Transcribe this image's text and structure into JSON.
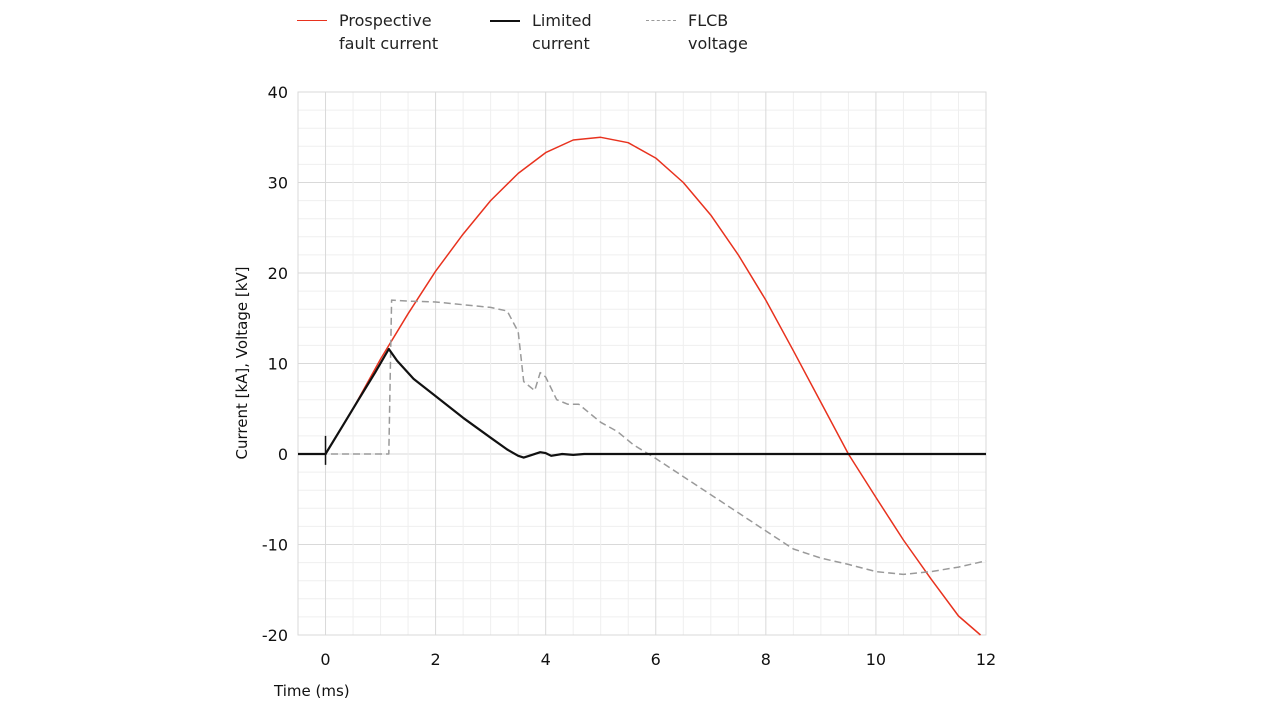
{
  "chart_data": {
    "type": "line",
    "title": "",
    "xlabel": "Time (ms)",
    "ylabel": "Current [kA], Voltage [kV]",
    "xlim": [
      -0.5,
      12
    ],
    "ylim": [
      -20,
      40
    ],
    "x_ticks": [
      0,
      2,
      4,
      6,
      8,
      10,
      12
    ],
    "x_tick_labels": [
      "0",
      "2",
      "4",
      "6",
      "8",
      "10",
      "12"
    ],
    "y_ticks": [
      40,
      30,
      20,
      10,
      0,
      -10,
      -20
    ],
    "y_tick_labels": [
      "40",
      "30",
      "20",
      "10",
      "0",
      "-10",
      "-20"
    ],
    "grid": true,
    "legend_position": "top",
    "series": [
      {
        "name": "Prospective\nfault current",
        "style": "solid",
        "color": "#e8321e",
        "x": [
          0,
          0.5,
          1.0,
          1.5,
          2.0,
          2.5,
          3.0,
          3.5,
          4.0,
          4.5,
          5.0,
          5.5,
          6.0,
          6.5,
          7.0,
          7.5,
          8.0,
          8.5,
          9.0,
          9.5,
          10.0,
          10.5,
          11.0,
          11.5,
          11.9
        ],
        "values": [
          0,
          5,
          10.5,
          15.5,
          20.2,
          24.3,
          28,
          31,
          33.3,
          34.7,
          35,
          34.4,
          32.7,
          30,
          26.4,
          22,
          17,
          11.4,
          5.7,
          0,
          -4.8,
          -9.5,
          -13.8,
          -17.9,
          -20
        ]
      },
      {
        "name": "Limited\ncurrent",
        "style": "solid",
        "color": "#111111",
        "x": [
          -0.5,
          0,
          0.3,
          0.6,
          0.9,
          1.15,
          1.3,
          1.6,
          2.0,
          2.5,
          3.0,
          3.3,
          3.5,
          3.6,
          3.7,
          3.9,
          4.0,
          4.1,
          4.3,
          4.5,
          4.7,
          5.0,
          6.0,
          8.0,
          10.0,
          12.0
        ],
        "values": [
          0,
          0,
          3,
          6,
          9,
          11.6,
          10.3,
          8.3,
          6.4,
          4.0,
          1.8,
          0.5,
          -0.2,
          -0.4,
          -0.2,
          0.2,
          0.1,
          -0.2,
          0,
          -0.1,
          0,
          0,
          0,
          0,
          0,
          0
        ]
      },
      {
        "name": "FLCB\nvoltage",
        "style": "dashed",
        "color": "#9a9a9a",
        "x": [
          -0.5,
          0,
          1.0,
          1.15,
          1.2,
          1.5,
          2.0,
          2.5,
          3.0,
          3.3,
          3.5,
          3.6,
          3.8,
          3.9,
          4.0,
          4.2,
          4.4,
          4.6,
          4.8,
          5.0,
          5.3,
          5.6,
          6.0,
          6.5,
          7.0,
          7.5,
          8.0,
          8.5,
          9.0,
          9.5,
          10.0,
          10.5,
          11.0,
          11.5,
          12.0
        ],
        "values": [
          0,
          0,
          0,
          0,
          17,
          16.9,
          16.8,
          16.5,
          16.2,
          15.8,
          13.5,
          8,
          7,
          9,
          8.5,
          6,
          5.5,
          5.5,
          4.5,
          3.5,
          2.5,
          1.0,
          -0.5,
          -2.5,
          -4.5,
          -6.5,
          -8.5,
          -10.5,
          -11.5,
          -12.2,
          -13.0,
          -13.3,
          -13.0,
          -12.5,
          -11.8
        ]
      }
    ]
  }
}
